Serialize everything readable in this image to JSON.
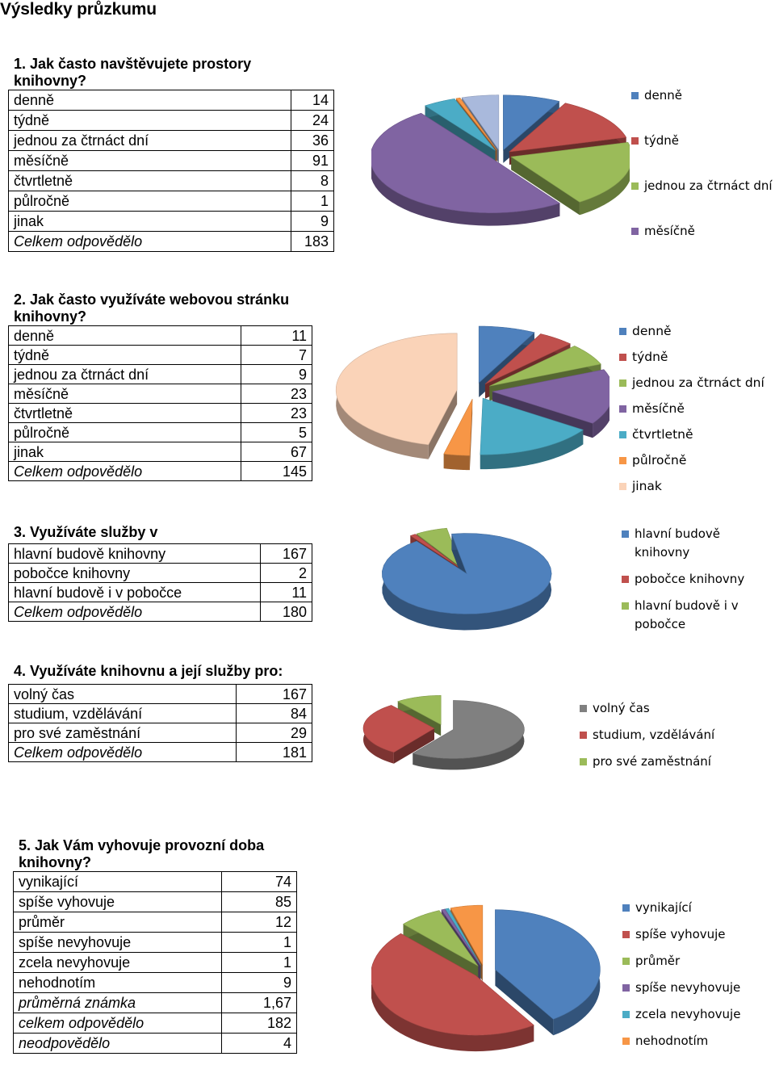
{
  "page_title": "Výsledky průzkumu",
  "questions": [
    {
      "title": "1. Jak často navštěvujete prostory knihovny?",
      "rows": [
        {
          "label": "denně",
          "value": "14"
        },
        {
          "label": "týdně",
          "value": "24"
        },
        {
          "label": "jednou za čtrnáct dní",
          "value": "36"
        },
        {
          "label": "měsíčně",
          "value": "91"
        },
        {
          "label": "čtvrtletně",
          "value": "8"
        },
        {
          "label": "půlročně",
          "value": "1"
        },
        {
          "label": "jinak",
          "value": "9"
        }
      ],
      "total": {
        "label": "Celkem odpovědělo",
        "value": "183"
      },
      "legend": [
        "denně",
        "týdně",
        "jednou za čtrnáct dní",
        "měsíčně"
      ]
    },
    {
      "title": "2. Jak často využíváte webovou stránku knihovny?",
      "rows": [
        {
          "label": "denně",
          "value": "11"
        },
        {
          "label": "týdně",
          "value": "7"
        },
        {
          "label": "jednou za čtrnáct dní",
          "value": "9"
        },
        {
          "label": "měsíčně",
          "value": "23"
        },
        {
          "label": "čtvrtletně",
          "value": "23"
        },
        {
          "label": "půlročně",
          "value": "5"
        },
        {
          "label": "jinak",
          "value": "67"
        }
      ],
      "total": {
        "label": "Celkem odpovědělo",
        "value": "145"
      },
      "legend": [
        "denně",
        "týdně",
        "jednou za čtrnáct dní",
        "měsíčně",
        "čtvrtletně",
        "půlročně",
        "jinak"
      ]
    },
    {
      "title": "3. Využíváte služby v",
      "rows": [
        {
          "label": "hlavní budově knihovny",
          "value": "167"
        },
        {
          "label": "pobočce knihovny",
          "value": "2"
        },
        {
          "label": "hlavní budově i v pobočce",
          "value": "11"
        }
      ],
      "total": {
        "label": "Celkem odpovědělo",
        "value": "180"
      },
      "legend": [
        "hlavní budově knihovny",
        "pobočce knihovny",
        "hlavní budově i v pobočce"
      ]
    },
    {
      "title": "4. Využíváte knihovnu a její služby pro:",
      "rows": [
        {
          "label": "volný čas",
          "value": "167"
        },
        {
          "label": "studium, vzdělávání",
          "value": "84"
        },
        {
          "label": "pro své zaměstnání",
          "value": "29"
        }
      ],
      "total": {
        "label": "Celkem odpovědělo",
        "value": "181"
      },
      "legend": [
        "volný čas",
        "studium, vzdělávání",
        "pro své zaměstnání"
      ]
    },
    {
      "title": "5. Jak Vám vyhovuje provozní doba knihovny?",
      "rows": [
        {
          "label": "vynikající",
          "value": "74"
        },
        {
          "label": "spíše vyhovuje",
          "value": "85"
        },
        {
          "label": "průměr",
          "value": "12"
        },
        {
          "label": "spíše nevyhovuje",
          "value": "1"
        },
        {
          "label": "zcela nevyhovuje",
          "value": "1"
        },
        {
          "label": "nehodnotím",
          "value": "9"
        }
      ],
      "extra_rows": [
        {
          "label": "průměrná známka",
          "value": "1,67"
        },
        {
          "label": "celkem odpovědělo",
          "value": "182"
        },
        {
          "label": "neodpovědělo",
          "value": "4"
        }
      ],
      "legend": [
        "vynikající",
        "spíše vyhovuje",
        "průměr",
        "spíše nevyhovuje",
        "zcela nevyhovuje",
        "nehodnotím"
      ]
    }
  ],
  "chart_data": [
    {
      "type": "pie",
      "categories": [
        "denně",
        "týdně",
        "jednou za čtrnáct dní",
        "měsíčně",
        "čtvrtletně",
        "půlročně",
        "jinak"
      ],
      "values": [
        14,
        24,
        36,
        91,
        8,
        1,
        9
      ],
      "colors": [
        "#4F81BD",
        "#C0504D",
        "#9BBB59",
        "#8064A2",
        "#4BACC6",
        "#F79646",
        "#A9B9DC"
      ],
      "legend_position": "right"
    },
    {
      "type": "pie",
      "categories": [
        "denně",
        "týdně",
        "jednou za čtrnáct dní",
        "měsíčně",
        "čtvrtletně",
        "půlročně",
        "jinak"
      ],
      "values": [
        11,
        7,
        9,
        23,
        23,
        5,
        67
      ],
      "colors": [
        "#4F81BD",
        "#C0504D",
        "#9BBB59",
        "#8064A2",
        "#4BACC6",
        "#F79646",
        "#FAD3B8"
      ],
      "legend_position": "right"
    },
    {
      "type": "pie",
      "categories": [
        "hlavní budově knihovny",
        "pobočce knihovny",
        "hlavní budově i v pobočce"
      ],
      "values": [
        167,
        2,
        11
      ],
      "colors": [
        "#4F81BD",
        "#C0504D",
        "#9BBB59"
      ],
      "legend_position": "right"
    },
    {
      "type": "pie",
      "categories": [
        "volný čas",
        "studium, vzdělávání",
        "pro své zaměstnání"
      ],
      "values": [
        167,
        84,
        29
      ],
      "colors": [
        "#808080",
        "#C0504D",
        "#9BBB59"
      ],
      "legend_position": "right"
    },
    {
      "type": "pie",
      "categories": [
        "vynikající",
        "spíše vyhovuje",
        "průměr",
        "spíše nevyhovuje",
        "zcela nevyhovuje",
        "nehodnotím"
      ],
      "values": [
        74,
        85,
        12,
        1,
        1,
        9
      ],
      "colors": [
        "#4F81BD",
        "#C0504D",
        "#9BBB59",
        "#8064A2",
        "#4BACC6",
        "#F79646"
      ],
      "legend_position": "right"
    }
  ]
}
